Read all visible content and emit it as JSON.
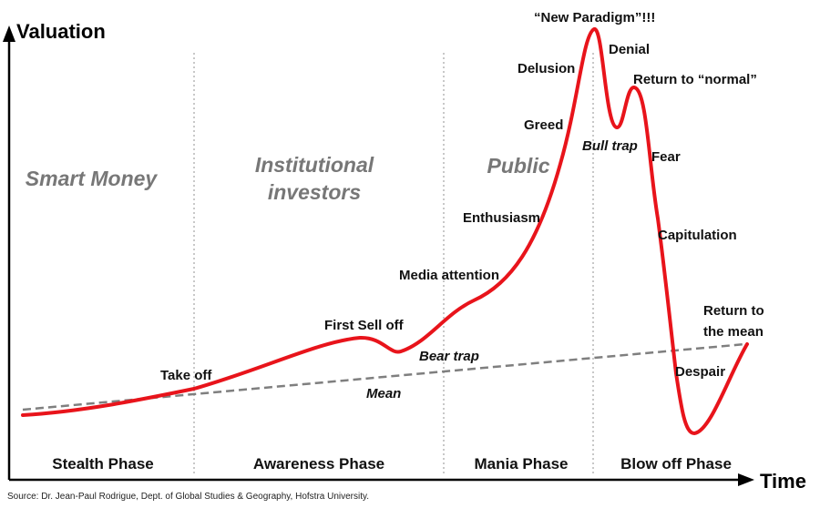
{
  "axes": {
    "y_label": "Valuation",
    "x_label": "Time"
  },
  "colors": {
    "curve": "#e8141b",
    "mean_line": "#7f7f7f",
    "divider": "#c8c8c8",
    "group_text": "#777777"
  },
  "investor_groups": {
    "smart_money": "Smart Money",
    "institutional_line1": "Institutional",
    "institutional_line2": "investors",
    "public": "Public"
  },
  "curve_labels": {
    "take_off": "Take off",
    "first_sell_off": "First Sell off",
    "bear_trap": "Bear trap",
    "media_attention": "Media attention",
    "enthusiasm": "Enthusiasm",
    "greed": "Greed",
    "delusion": "Delusion",
    "new_paradigm": "“New Paradigm”!!!",
    "denial": "Denial",
    "bull_trap": "Bull trap",
    "return_to_normal": "Return to “normal”",
    "fear": "Fear",
    "capitulation": "Capitulation",
    "return_to_mean_line1": "Return to",
    "return_to_mean_line2": "the mean",
    "despair": "Despair",
    "mean": "Mean"
  },
  "phases": {
    "stealth": "Stealth Phase",
    "awareness": "Awareness Phase",
    "mania": "Mania Phase",
    "blow_off": "Blow off Phase"
  },
  "source": "Source: Dr. Jean-Paul Rodrigue, Dept. of Global Studies & Geography, Hofstra University."
}
